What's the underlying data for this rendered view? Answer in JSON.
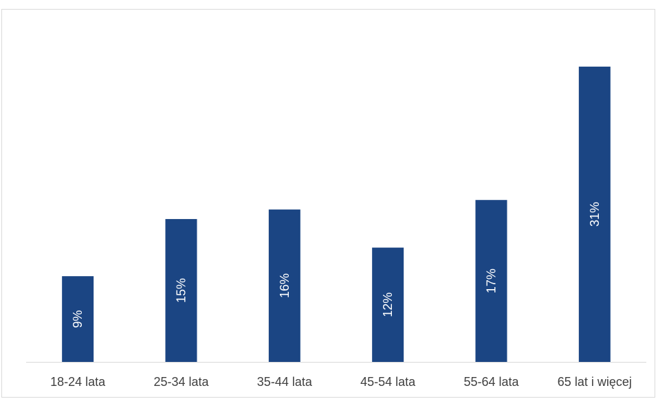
{
  "chart_data": {
    "type": "bar",
    "orientation": "vertical",
    "categories": [
      "18-24 lata",
      "25-34 lata",
      "35-44 lata",
      "45-54 lata",
      "55-64 lata",
      "65 lat i więcej"
    ],
    "values": [
      9,
      15,
      16,
      12,
      17,
      31
    ],
    "value_labels": [
      "9%",
      "15%",
      "16%",
      "12%",
      "17%",
      "31%"
    ],
    "unit": "%",
    "ylim": [
      0,
      35
    ],
    "grid": false,
    "legend": "none",
    "colors": {
      "bar": "#1b4583",
      "axis": "#d9d9d9",
      "tick_text": "#404040",
      "value_text": "#ffffff"
    }
  }
}
